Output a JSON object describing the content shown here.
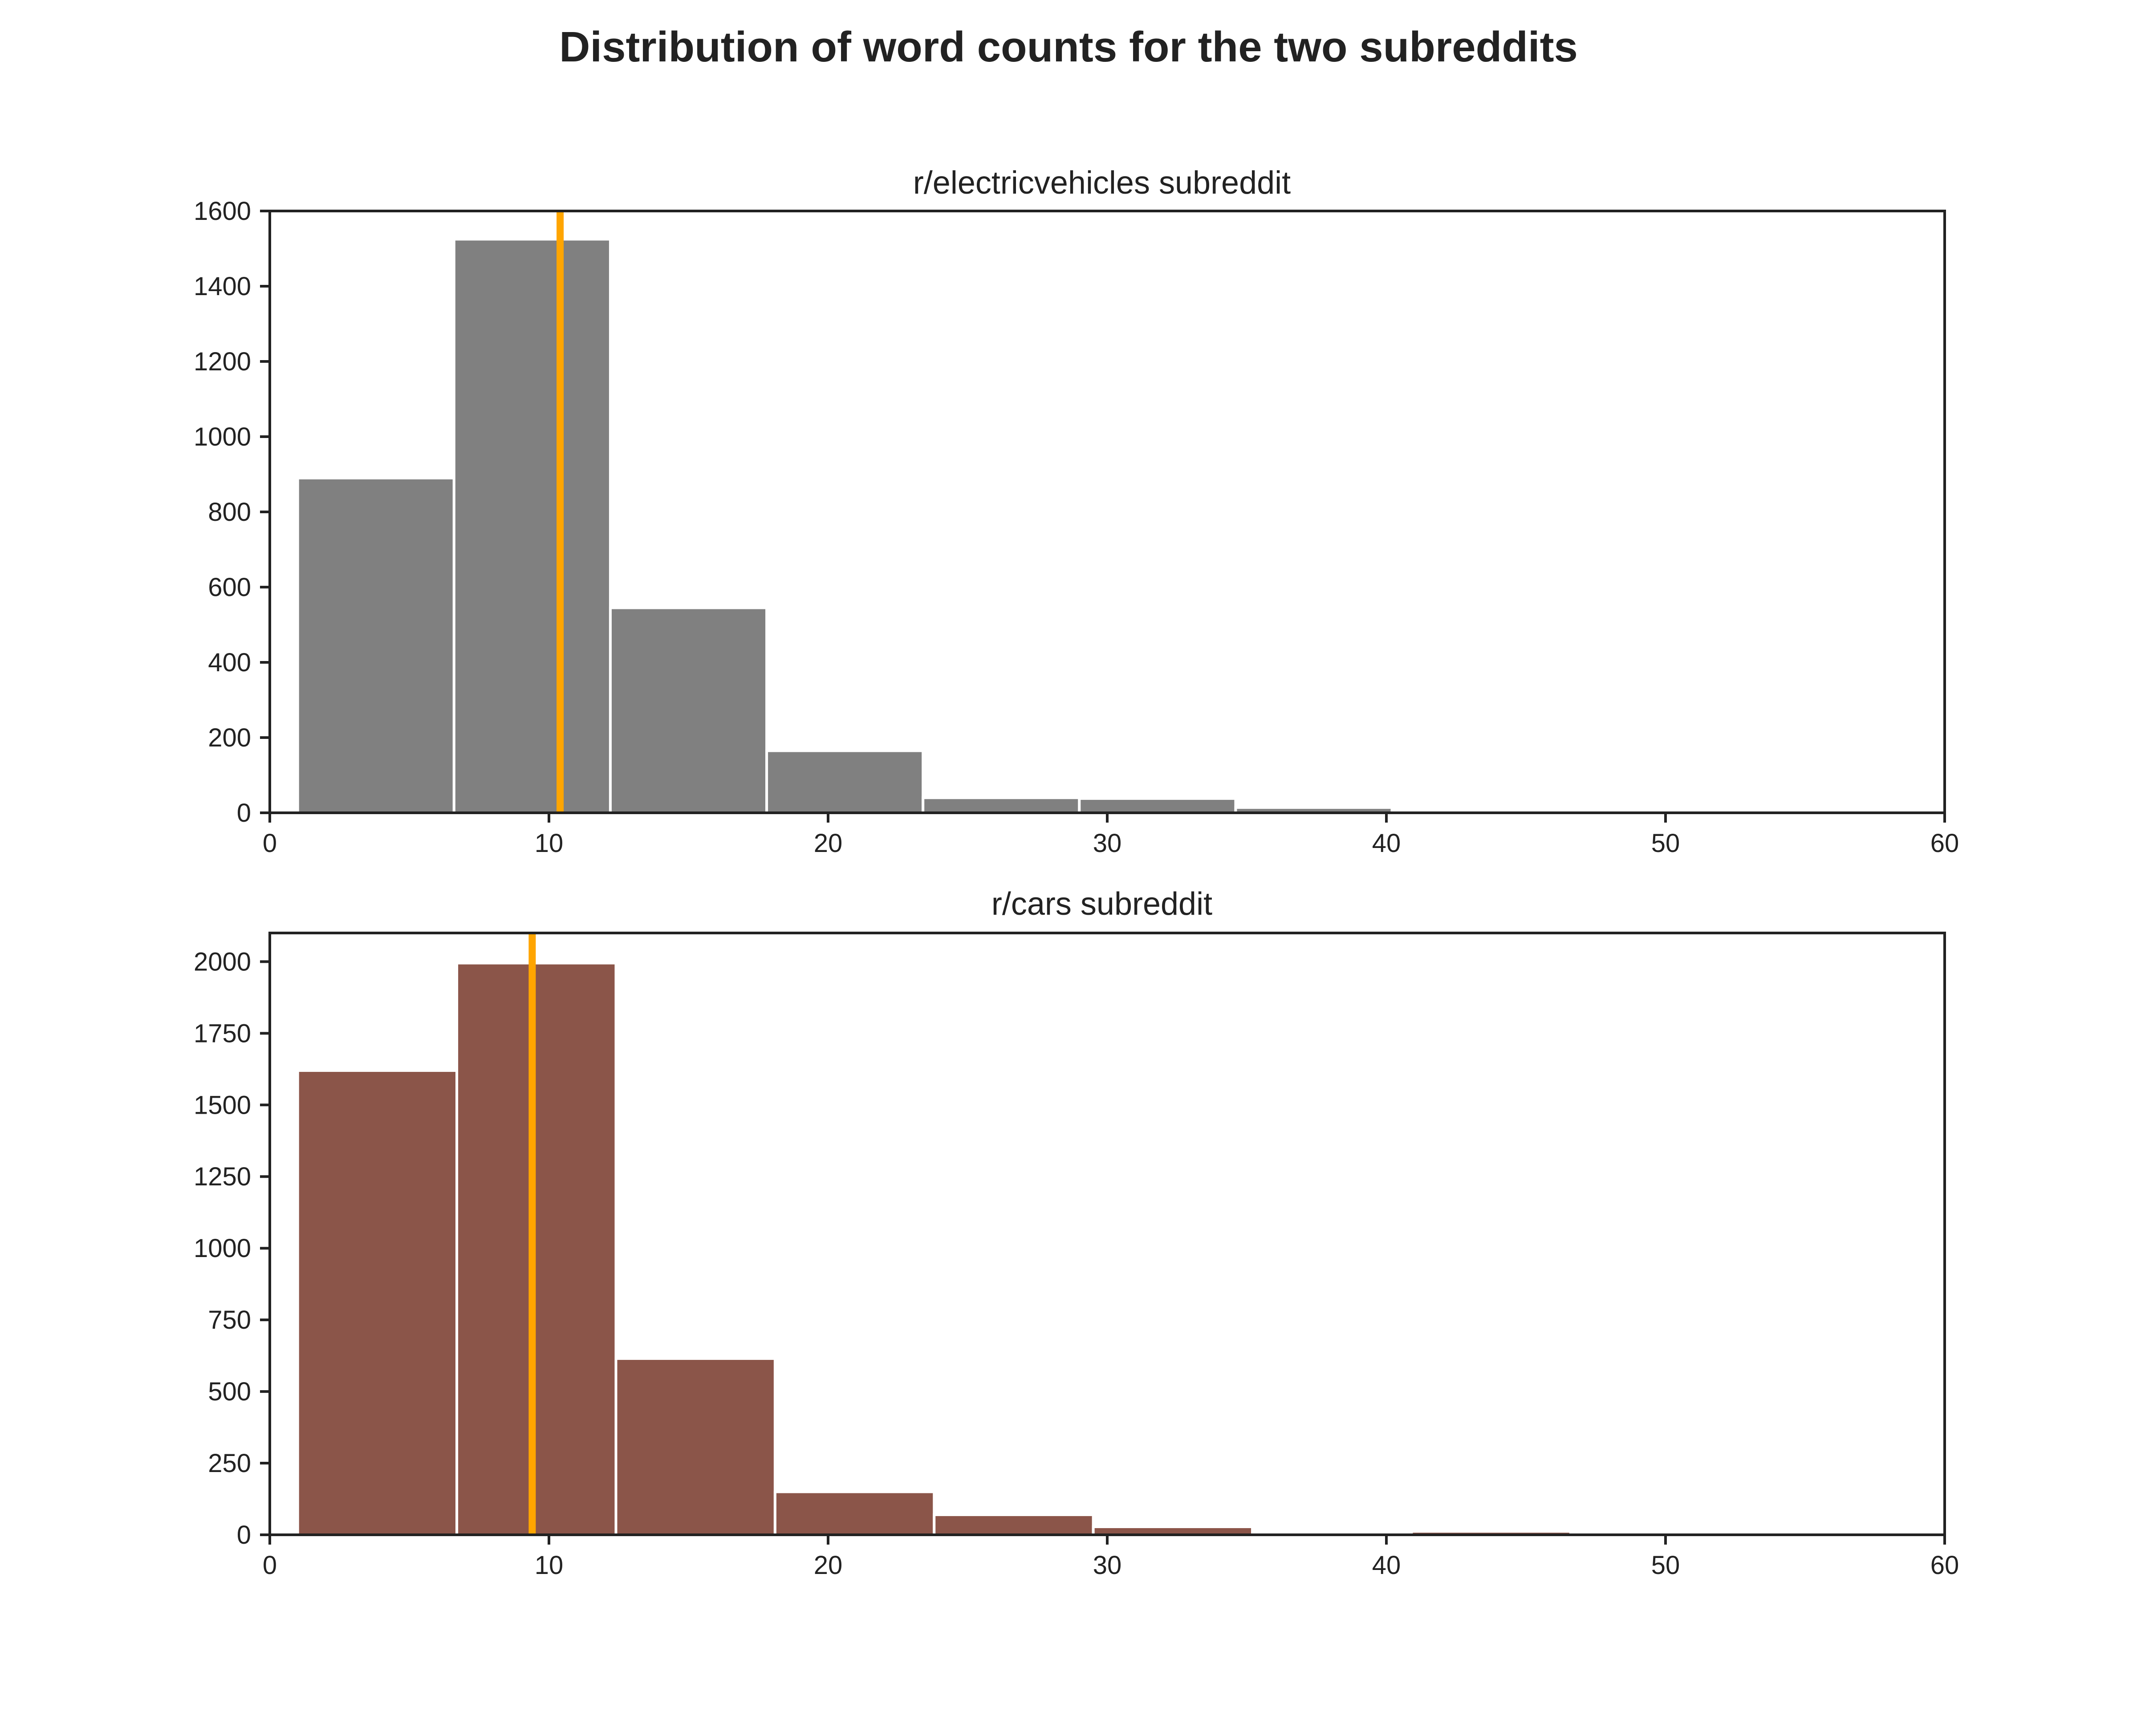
{
  "figure_title": "Distribution of word counts for the two subreddits",
  "chart_data": [
    {
      "type": "bar",
      "title": "r/electricvehicles subreddit",
      "xlabel": "",
      "ylabel": "",
      "xlim": [
        0,
        60
      ],
      "ylim": [
        0,
        1600
      ],
      "xticks": [
        "0",
        "10",
        "20",
        "30",
        "40",
        "50",
        "60"
      ],
      "yticks": [
        "0",
        "200",
        "400",
        "600",
        "800",
        "1000",
        "1200",
        "1400",
        "1600"
      ],
      "bins": [
        {
          "x0": 1.0,
          "x1": 6.6,
          "count": 890
        },
        {
          "x0": 6.6,
          "x1": 12.2,
          "count": 1525
        },
        {
          "x0": 12.2,
          "x1": 17.8,
          "count": 545
        },
        {
          "x0": 17.8,
          "x1": 23.4,
          "count": 165
        },
        {
          "x0": 23.4,
          "x1": 29.0,
          "count": 40
        },
        {
          "x0": 29.0,
          "x1": 34.6,
          "count": 38
        },
        {
          "x0": 34.6,
          "x1": 40.2,
          "count": 14
        },
        {
          "x0": 40.2,
          "x1": 45.8,
          "count": 2
        },
        {
          "x0": 45.8,
          "x1": 51.4,
          "count": 5
        },
        {
          "x0": 51.4,
          "x1": 57.0,
          "count": 1
        }
      ],
      "mean_line": 10.4,
      "bar_color": "#808080",
      "line_color": "#ffa500",
      "grid": false
    },
    {
      "type": "bar",
      "title": "r/cars subreddit",
      "xlabel": "",
      "ylabel": "",
      "xlim": [
        0,
        60
      ],
      "ylim": [
        0,
        2100
      ],
      "xticks": [
        "0",
        "10",
        "20",
        "30",
        "40",
        "50",
        "60"
      ],
      "yticks": [
        "0",
        "250",
        "500",
        "750",
        "1000",
        "1250",
        "1500",
        "1750",
        "2000"
      ],
      "bins": [
        {
          "x0": 1.0,
          "x1": 6.7,
          "count": 1620
        },
        {
          "x0": 6.7,
          "x1": 12.4,
          "count": 1995
        },
        {
          "x0": 12.4,
          "x1": 18.1,
          "count": 615
        },
        {
          "x0": 18.1,
          "x1": 23.8,
          "count": 150
        },
        {
          "x0": 23.8,
          "x1": 29.5,
          "count": 70
        },
        {
          "x0": 29.5,
          "x1": 35.2,
          "count": 28
        },
        {
          "x0": 35.2,
          "x1": 40.9,
          "count": 2
        },
        {
          "x0": 40.9,
          "x1": 46.6,
          "count": 12
        },
        {
          "x0": 46.6,
          "x1": 52.3,
          "count": 1
        },
        {
          "x0": 52.3,
          "x1": 58.0,
          "count": 0
        }
      ],
      "mean_line": 9.4,
      "bar_color": "#8b5549",
      "line_color": "#ffa500",
      "grid": false
    }
  ]
}
